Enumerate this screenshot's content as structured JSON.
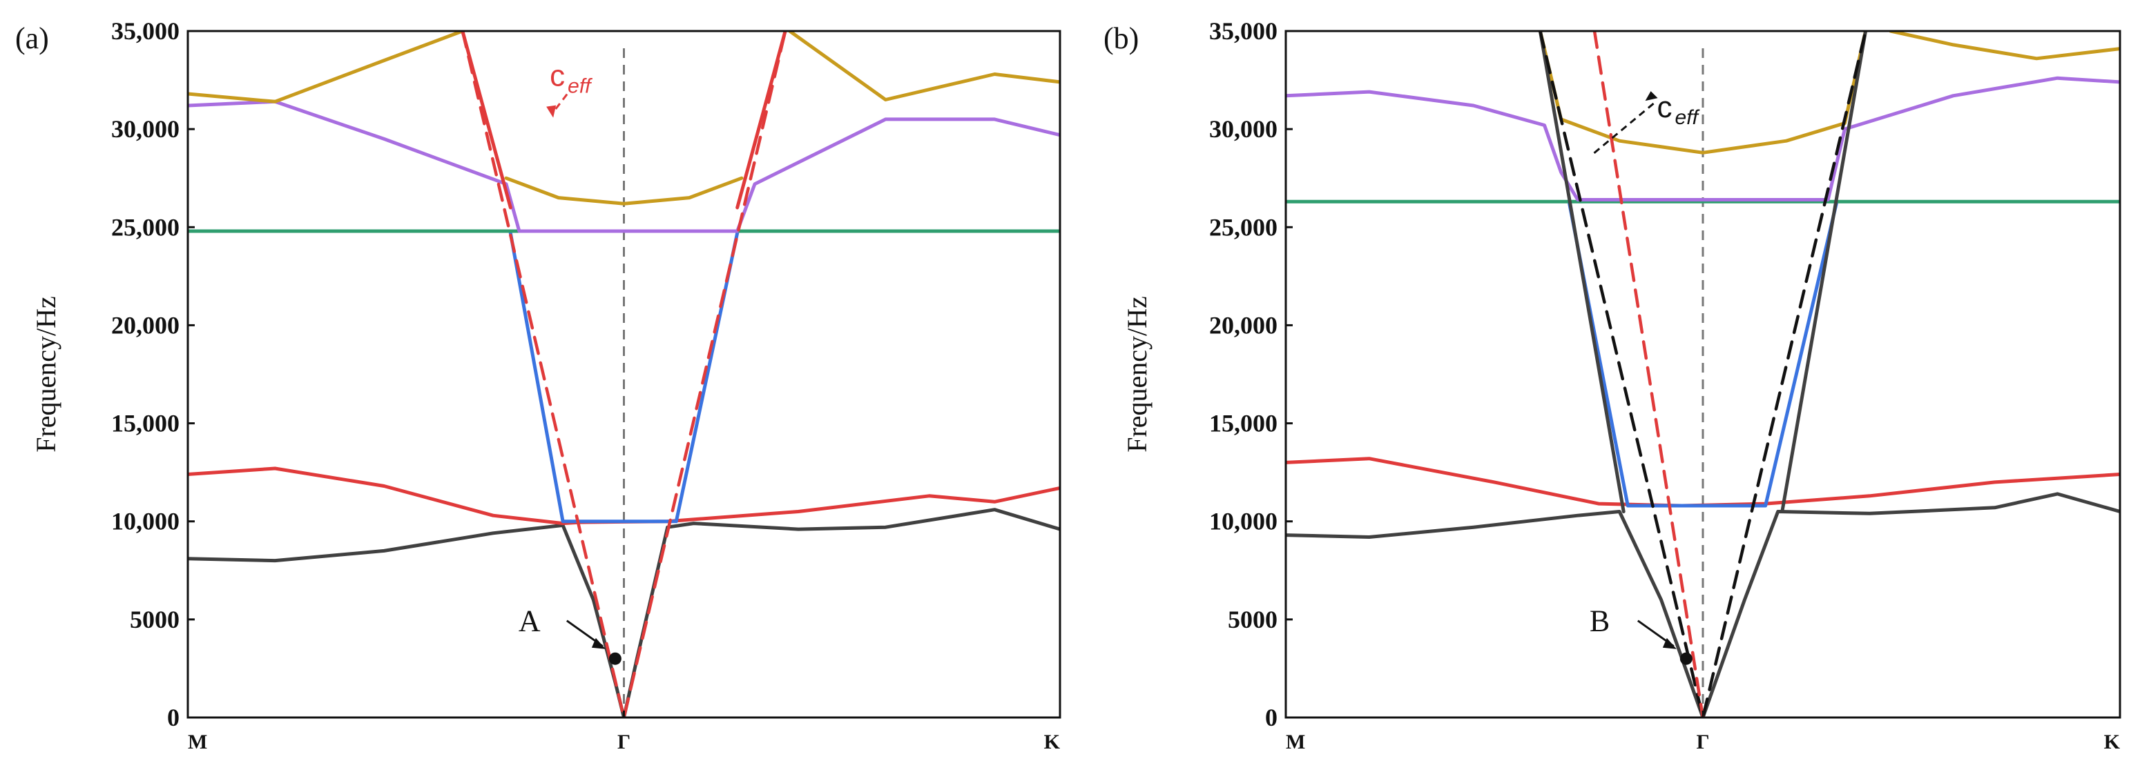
{
  "chart_data": [
    {
      "type": "line",
      "panel_label": "(a)",
      "ylabel": "Frequency/Hz",
      "xlabel": "",
      "x_ticks": [
        "M",
        "Γ",
        "K"
      ],
      "ylim": [
        0,
        35000
      ],
      "y_ticks": [
        0,
        5000,
        10000,
        15000,
        20000,
        25000,
        30000,
        35000
      ],
      "y_tick_labels": [
        "0",
        "5000",
        "10,000",
        "15,000",
        "20,000",
        "25,000",
        "30,000",
        "35,000"
      ],
      "x_note": "x is normalized path coordinate: 0 = M, 1 = Γ, 2 = K",
      "series": [
        {
          "name": "band 1",
          "color": "#404040",
          "points": [
            [
              0,
              8100
            ],
            [
              0.2,
              8000
            ],
            [
              0.45,
              8500
            ],
            [
              0.7,
              9400
            ],
            [
              0.86,
              9800
            ],
            [
              0.93,
              6000
            ],
            [
              0.98,
              1800
            ],
            [
              1,
              0
            ],
            [
              1.03,
              3000
            ],
            [
              1.1,
              9700
            ],
            [
              1.16,
              9900
            ],
            [
              1.4,
              9600
            ],
            [
              1.6,
              9700
            ],
            [
              1.85,
              10600
            ],
            [
              2,
              9600
            ]
          ]
        },
        {
          "name": "band 2",
          "color": "#e03a3a",
          "points": [
            [
              0,
              12400
            ],
            [
              0.2,
              12700
            ],
            [
              0.45,
              11800
            ],
            [
              0.7,
              10300
            ],
            [
              0.86,
              9900
            ],
            [
              0.9,
              9950
            ],
            [
              1.1,
              10000
            ],
            [
              1.4,
              10500
            ],
            [
              1.7,
              11300
            ],
            [
              1.85,
              11000
            ],
            [
              2,
              11700
            ]
          ]
        },
        {
          "name": "band 3",
          "color": "#3a73e0",
          "points": [
            [
              0.74,
              24700
            ],
            [
              0.86,
              10000
            ],
            [
              1.12,
              10000
            ],
            [
              1.26,
              24700
            ]
          ]
        },
        {
          "name": "band 4",
          "color": "#2f9e6f",
          "points": [
            [
              0,
              24800
            ],
            [
              2,
              24800
            ]
          ]
        },
        {
          "name": "band 5",
          "color": "#a86ee0",
          "points": [
            [
              0,
              31200
            ],
            [
              0.2,
              31400
            ],
            [
              0.45,
              29500
            ],
            [
              0.73,
              27200
            ],
            [
              0.76,
              24800
            ],
            [
              1.26,
              24800
            ],
            [
              1.3,
              27200
            ],
            [
              1.6,
              30500
            ],
            [
              1.85,
              30500
            ],
            [
              2,
              29700
            ]
          ]
        },
        {
          "name": "band 6",
          "color": "#c89b1d",
          "points": [
            [
              0,
              31800
            ],
            [
              0.2,
              31400
            ],
            [
              0.45,
              33500
            ],
            [
              0.63,
              35000
            ]
          ]
        },
        {
          "name": "band 6b",
          "color": "#c89b1d",
          "points": [
            [
              0.73,
              27500
            ],
            [
              0.85,
              26500
            ],
            [
              1,
              26200
            ],
            [
              1.15,
              26500
            ],
            [
              1.27,
              27500
            ]
          ]
        },
        {
          "name": "band 7",
          "color": "#c89b1d",
          "points": [
            [
              1.38,
              35000
            ],
            [
              1.6,
              31500
            ],
            [
              1.85,
              32800
            ],
            [
              2,
              32400
            ]
          ]
        },
        {
          "name": "steep left",
          "color": "#e03a3a",
          "points": [
            [
              0.63,
              35000
            ],
            [
              0.74,
              26000
            ]
          ]
        },
        {
          "name": "steep right",
          "color": "#e03a3a",
          "points": [
            [
              1.26,
              26000
            ],
            [
              1.37,
              35000
            ]
          ]
        },
        {
          "name": "effective-speed fit",
          "color": "#e03a3a",
          "dashed": true,
          "points": [
            [
              0.63,
              35000
            ],
            [
              1,
              0
            ],
            [
              1.37,
              35000
            ]
          ]
        }
      ],
      "annotations": [
        {
          "text": "A",
          "point": [
            0.98,
            3000
          ]
        },
        {
          "text": "c",
          "subscript": "eff",
          "color": "#e03a3a"
        }
      ]
    },
    {
      "type": "line",
      "panel_label": "(b)",
      "ylabel": "Frequency/Hz",
      "xlabel": "",
      "x_ticks": [
        "M",
        "Γ",
        "K"
      ],
      "ylim": [
        0,
        35000
      ],
      "y_ticks": [
        0,
        5000,
        10000,
        15000,
        20000,
        25000,
        30000,
        35000
      ],
      "y_tick_labels": [
        "0",
        "5000",
        "10,000",
        "15,000",
        "20,000",
        "25,000",
        "30,000",
        "35,000"
      ],
      "x_note": "x is normalized path coordinate: 0 = M, 1 = Γ, 2 = K",
      "series": [
        {
          "name": "band 1",
          "color": "#404040",
          "points": [
            [
              0,
              9300
            ],
            [
              0.2,
              9200
            ],
            [
              0.45,
              9700
            ],
            [
              0.7,
              10300
            ],
            [
              0.8,
              10500
            ],
            [
              0.9,
              6000
            ],
            [
              1,
              0
            ],
            [
              1.1,
              6000
            ],
            [
              1.18,
              10500
            ],
            [
              1.4,
              10400
            ],
            [
              1.7,
              10700
            ],
            [
              1.85,
              11400
            ],
            [
              2,
              10500
            ]
          ]
        },
        {
          "name": "band 2",
          "color": "#e03a3a",
          "points": [
            [
              0,
              13000
            ],
            [
              0.2,
              13200
            ],
            [
              0.5,
              12000
            ],
            [
              0.75,
              10900
            ],
            [
              0.95,
              10800
            ],
            [
              1.15,
              10900
            ],
            [
              1.4,
              11300
            ],
            [
              1.7,
              12000
            ],
            [
              2,
              12400
            ]
          ]
        },
        {
          "name": "band 3",
          "color": "#3a73e0",
          "points": [
            [
              0.68,
              26200
            ],
            [
              0.82,
              10800
            ],
            [
              1.15,
              10800
            ],
            [
              1.32,
              26200
            ]
          ]
        },
        {
          "name": "band 4",
          "color": "#2f9e6f",
          "points": [
            [
              0,
              26300
            ],
            [
              2,
              26300
            ]
          ]
        },
        {
          "name": "band 5",
          "color": "#a86ee0",
          "points": [
            [
              0,
              31700
            ],
            [
              0.2,
              31900
            ],
            [
              0.45,
              31200
            ],
            [
              0.62,
              30200
            ],
            [
              0.66,
              27800
            ],
            [
              0.7,
              26400
            ],
            [
              1.3,
              26400
            ],
            [
              1.34,
              30000
            ],
            [
              1.6,
              31700
            ],
            [
              1.85,
              32600
            ],
            [
              2,
              32400
            ]
          ]
        },
        {
          "name": "band 6",
          "color": "#c89b1d",
          "points": [
            [
              0.61,
              35000
            ],
            [
              0.66,
              30500
            ],
            [
              0.8,
              29400
            ],
            [
              1,
              28800
            ],
            [
              1.2,
              29400
            ],
            [
              1.34,
              30300
            ],
            [
              1.39,
              35000
            ]
          ]
        },
        {
          "name": "band 7",
          "color": "#c89b1d",
          "points": [
            [
              1.45,
              35000
            ],
            [
              1.6,
              34300
            ],
            [
              1.8,
              33600
            ],
            [
              2,
              34100
            ]
          ]
        },
        {
          "name": "steep left",
          "color": "#404040",
          "points": [
            [
              0.61,
              35000
            ],
            [
              0.81,
              10500
            ]
          ]
        },
        {
          "name": "steep right",
          "color": "#404040",
          "points": [
            [
              1.19,
              10500
            ],
            [
              1.39,
              35000
            ]
          ]
        },
        {
          "name": "acoustic fit",
          "color": "#111111",
          "dashed": true,
          "points": [
            [
              0.61,
              35000
            ],
            [
              1,
              0
            ],
            [
              1.39,
              35000
            ]
          ]
        },
        {
          "name": "effective-speed fit",
          "color": "#e03a3a",
          "dashed": true,
          "points": [
            [
              0.74,
              35000
            ],
            [
              1,
              0
            ]
          ]
        }
      ],
      "annotations": [
        {
          "text": "B",
          "point": [
            0.96,
            3000
          ]
        },
        {
          "text": "c",
          "subscript": "eff",
          "color": "#111111"
        }
      ]
    }
  ]
}
